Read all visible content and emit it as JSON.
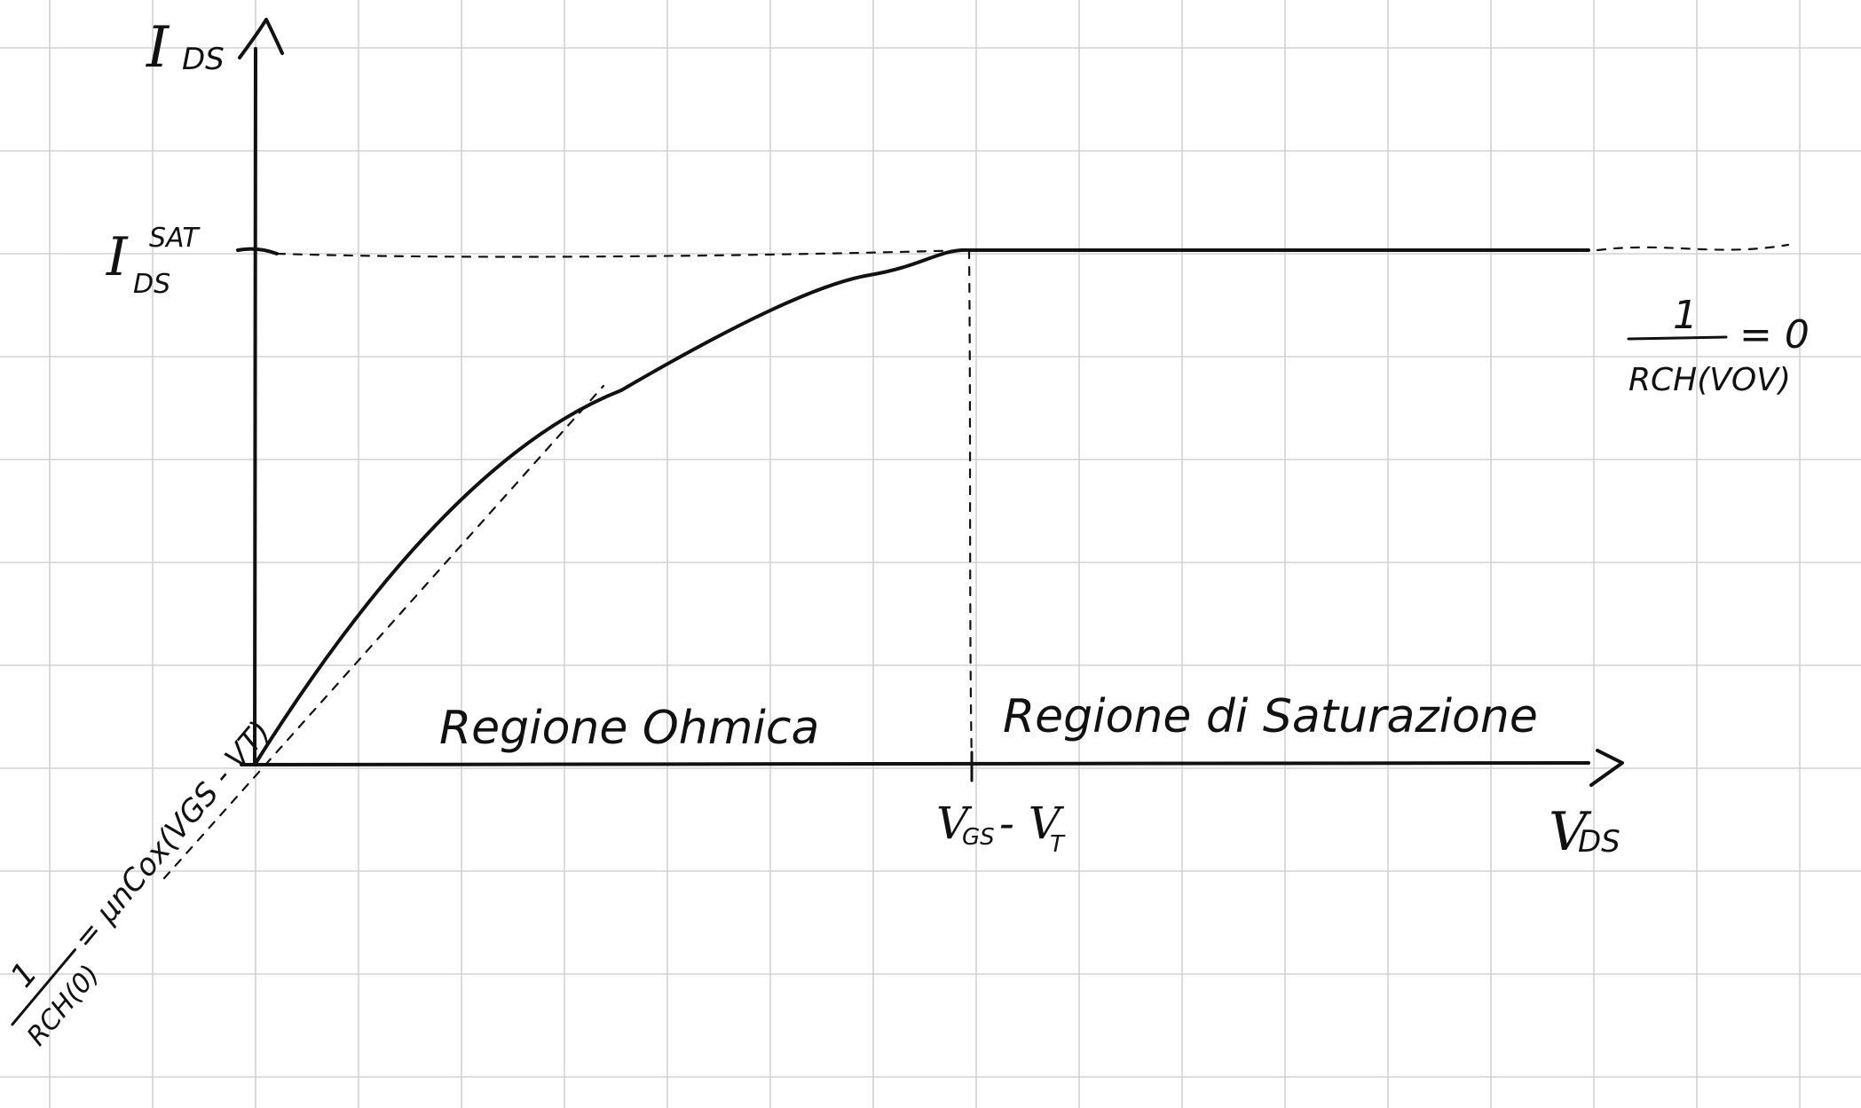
{
  "axes": {
    "y_label": "I",
    "y_label_sub": "DS",
    "x_label": "V",
    "x_label_sub": "DS"
  },
  "levels": {
    "isat_main": "I",
    "isat_sub": "DS",
    "isat_sup": "SAT"
  },
  "ticks": {
    "vov_main": "V",
    "vov_sub_gs": "GS",
    "vov_minus": "- V",
    "vov_sub_t": "T"
  },
  "regions": {
    "ohmic": "Regione Ohmica",
    "saturation": "Regione di Saturazione"
  },
  "annotations": {
    "sat_conductance_num": "1",
    "sat_conductance_den": "RCH(VOV)",
    "sat_conductance_eq": "= 0",
    "ohmic_conductance_num": "1",
    "ohmic_conductance_den": "RCH(0)",
    "ohmic_conductance_rhs": "= μnCox(VGS - VT)"
  }
}
